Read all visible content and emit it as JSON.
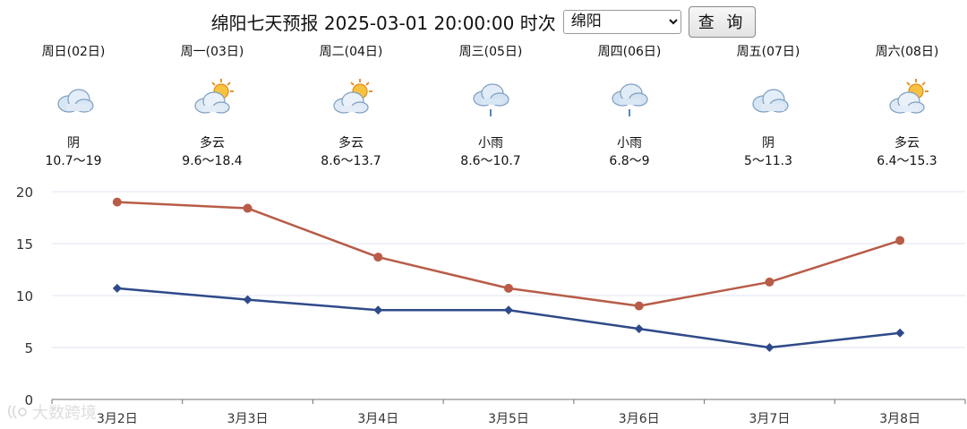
{
  "header": {
    "title": "绵阳七天预报 2025-03-01 20:00:00 时次",
    "city_selected": "绵阳",
    "query_label": "查 询"
  },
  "forecast": [
    {
      "day": "周日(02日)",
      "condition": "阴",
      "icon": "overcast-cloud-icon",
      "range": "10.7～19"
    },
    {
      "day": "周一(03日)",
      "condition": "多云",
      "icon": "sun-behind-cloud-icon",
      "range": "9.6～18.4"
    },
    {
      "day": "周二(04日)",
      "condition": "多云",
      "icon": "sun-behind-cloud-icon",
      "range": "8.6～13.7"
    },
    {
      "day": "周三(05日)",
      "condition": "小雨",
      "icon": "light-rain-icon",
      "range": "8.6～10.7"
    },
    {
      "day": "周四(06日)",
      "condition": "小雨",
      "icon": "light-rain-icon",
      "range": "6.8～9"
    },
    {
      "day": "周五(07日)",
      "condition": "阴",
      "icon": "overcast-cloud-icon",
      "range": "5～11.3"
    },
    {
      "day": "周六(08日)",
      "condition": "多云",
      "icon": "sun-behind-cloud-icon",
      "range": "6.4～15.3"
    }
  ],
  "chart_data": {
    "type": "line",
    "categories": [
      "3月2日",
      "3月3日",
      "3月4日",
      "3月5日",
      "3月6日",
      "3月7日",
      "3月8日"
    ],
    "series": [
      {
        "values": [
          19,
          18.4,
          13.7,
          10.7,
          9,
          11.3,
          15.3
        ],
        "color": "#b85c48",
        "marker": "circle"
      },
      {
        "values": [
          10.7,
          9.6,
          8.6,
          8.6,
          6.8,
          5,
          6.4
        ],
        "color": "#2f4a8a",
        "marker": "diamond"
      }
    ],
    "ylim": [
      0,
      20
    ],
    "yticks": [
      0,
      5,
      10,
      15,
      20
    ],
    "grid": true,
    "legend": "none"
  },
  "watermark": {
    "text": "大数跨境"
  }
}
